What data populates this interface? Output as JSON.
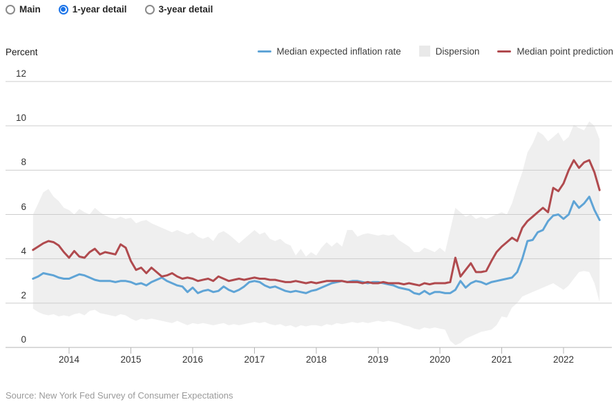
{
  "controls": {
    "radios": [
      {
        "label": "Main",
        "selected": false
      },
      {
        "label": "1-year detail",
        "selected": true
      },
      {
        "label": "3-year detail",
        "selected": false
      }
    ],
    "selected_color": "#1a73e8"
  },
  "source": {
    "text": "Source: New York Fed Survey of Consumer Expectations"
  },
  "chart_data": {
    "type": "line",
    "ylabel": "Percent",
    "ylim": [
      0,
      12
    ],
    "y_ticks": [
      0,
      2,
      4,
      6,
      8,
      10,
      12
    ],
    "x_tick_labels": [
      "2014",
      "2015",
      "2016",
      "2017",
      "2018",
      "2019",
      "2020",
      "2021",
      "2022"
    ],
    "x_tick_years": [
      2014,
      2015,
      2016,
      2017,
      2018,
      2019,
      2020,
      2021,
      2022
    ],
    "x_start_decimal_year": 2013.4167,
    "points_per_year": 12,
    "grid": true,
    "legend_position": "top-right",
    "band": {
      "name": "Dispersion",
      "color": "#efefef",
      "legend_swatch_color": "#e9e9e9",
      "upper": [
        6.0,
        6.5,
        7.0,
        7.15,
        6.8,
        6.6,
        6.3,
        6.2,
        6.0,
        6.25,
        6.1,
        6.0,
        6.3,
        6.1,
        5.95,
        5.85,
        5.8,
        5.9,
        5.8,
        5.85,
        5.6,
        5.7,
        5.75,
        5.6,
        5.5,
        5.4,
        5.3,
        5.2,
        5.3,
        5.2,
        5.1,
        5.2,
        5.0,
        4.9,
        5.0,
        4.8,
        5.15,
        5.25,
        5.1,
        4.9,
        4.7,
        4.9,
        5.1,
        5.3,
        5.1,
        5.2,
        4.9,
        4.8,
        4.9,
        4.7,
        4.6,
        4.15,
        4.45,
        4.1,
        4.3,
        4.15,
        4.5,
        4.75,
        4.55,
        4.75,
        4.55,
        5.3,
        5.3,
        5.0,
        5.1,
        5.15,
        5.1,
        5.05,
        5.1,
        5.05,
        5.1,
        4.85,
        4.7,
        4.55,
        4.3,
        4.3,
        4.5,
        4.4,
        4.3,
        4.5,
        4.3,
        5.3,
        6.3,
        6.1,
        5.9,
        6.0,
        5.8,
        5.9,
        5.8,
        5.9,
        6.0,
        6.1,
        6.0,
        6.5,
        7.25,
        7.9,
        8.8,
        9.2,
        9.75,
        9.6,
        9.3,
        9.5,
        9.7,
        9.3,
        9.5,
        10.05,
        9.9,
        9.8,
        10.2,
        10.0,
        9.4
      ],
      "lower": [
        1.75,
        1.6,
        1.5,
        1.45,
        1.5,
        1.4,
        1.45,
        1.4,
        1.5,
        1.55,
        1.45,
        1.65,
        1.7,
        1.55,
        1.5,
        1.45,
        1.4,
        1.5,
        1.45,
        1.3,
        1.2,
        1.3,
        1.25,
        1.3,
        1.25,
        1.2,
        1.15,
        1.1,
        1.2,
        1.1,
        1.0,
        1.1,
        1.05,
        1.1,
        1.05,
        1.0,
        1.05,
        1.1,
        1.0,
        1.05,
        1.0,
        1.05,
        1.1,
        1.15,
        1.1,
        1.15,
        1.05,
        1.0,
        1.05,
        0.95,
        1.0,
        0.9,
        1.0,
        0.95,
        1.0,
        1.0,
        0.95,
        1.05,
        1.0,
        1.1,
        1.05,
        1.1,
        1.15,
        1.1,
        1.15,
        1.1,
        1.15,
        1.2,
        1.15,
        1.2,
        1.15,
        1.1,
        1.0,
        0.95,
        0.85,
        0.8,
        0.9,
        0.85,
        0.9,
        0.85,
        0.8,
        0.3,
        0.1,
        0.2,
        0.4,
        0.5,
        0.6,
        0.7,
        0.75,
        0.8,
        1.0,
        1.4,
        1.35,
        1.8,
        2.0,
        2.3,
        2.4,
        2.5,
        2.6,
        2.7,
        2.8,
        2.9,
        2.75,
        2.6,
        2.8,
        3.1,
        3.4,
        3.45,
        3.4,
        2.9,
        2.05
      ]
    },
    "series": [
      {
        "name": "Median expected inflation rate",
        "color": "#5fa4d6",
        "values": [
          3.1,
          3.2,
          3.35,
          3.3,
          3.25,
          3.15,
          3.1,
          3.1,
          3.2,
          3.3,
          3.25,
          3.15,
          3.05,
          3.0,
          3.0,
          3.0,
          2.95,
          3.0,
          3.0,
          2.95,
          2.85,
          2.9,
          2.8,
          2.95,
          3.05,
          3.15,
          3.0,
          2.9,
          2.8,
          2.75,
          2.5,
          2.7,
          2.45,
          2.55,
          2.6,
          2.5,
          2.55,
          2.75,
          2.6,
          2.5,
          2.6,
          2.75,
          2.95,
          3.0,
          2.95,
          2.8,
          2.7,
          2.75,
          2.65,
          2.55,
          2.5,
          2.55,
          2.5,
          2.45,
          2.55,
          2.6,
          2.7,
          2.8,
          2.9,
          2.95,
          3.0,
          2.95,
          3.0,
          3.0,
          2.95,
          2.9,
          2.95,
          2.95,
          2.9,
          2.85,
          2.8,
          2.7,
          2.65,
          2.6,
          2.45,
          2.4,
          2.55,
          2.4,
          2.5,
          2.5,
          2.45,
          2.45,
          2.6,
          3.0,
          2.7,
          2.9,
          3.0,
          2.95,
          2.85,
          2.95,
          3.0,
          3.05,
          3.1,
          3.15,
          3.4,
          4.0,
          4.8,
          4.85,
          5.2,
          5.3,
          5.7,
          5.95,
          6.0,
          5.8,
          6.0,
          6.6,
          6.3,
          6.5,
          6.8,
          6.2,
          5.75
        ]
      },
      {
        "name": "Median point prediction",
        "color": "#b04a4e",
        "values": [
          4.4,
          4.55,
          4.7,
          4.8,
          4.75,
          4.6,
          4.3,
          4.05,
          4.35,
          4.1,
          4.05,
          4.3,
          4.45,
          4.2,
          4.3,
          4.25,
          4.2,
          4.65,
          4.5,
          3.9,
          3.5,
          3.6,
          3.35,
          3.6,
          3.4,
          3.2,
          3.25,
          3.35,
          3.2,
          3.1,
          3.15,
          3.1,
          3.0,
          3.05,
          3.1,
          3.0,
          3.2,
          3.1,
          3.0,
          3.05,
          3.1,
          3.05,
          3.1,
          3.15,
          3.1,
          3.1,
          3.05,
          3.05,
          3.0,
          2.95,
          2.95,
          3.0,
          2.95,
          2.9,
          2.95,
          2.9,
          2.95,
          3.0,
          3.0,
          3.0,
          3.0,
          2.95,
          2.95,
          2.95,
          2.9,
          2.95,
          2.9,
          2.9,
          2.95,
          2.9,
          2.9,
          2.9,
          2.85,
          2.9,
          2.85,
          2.8,
          2.9,
          2.85,
          2.9,
          2.9,
          2.9,
          2.95,
          4.05,
          3.2,
          3.5,
          3.8,
          3.4,
          3.4,
          3.45,
          3.9,
          4.3,
          4.55,
          4.75,
          4.95,
          4.8,
          5.4,
          5.7,
          5.9,
          6.1,
          6.3,
          6.1,
          7.2,
          7.05,
          7.4,
          8.0,
          8.45,
          8.1,
          8.35,
          8.45,
          7.9,
          7.1
        ]
      }
    ],
    "colors": {
      "gridline": "#cdcdcd",
      "axis": "#b5b5b5",
      "tick_text": "#333333"
    }
  }
}
